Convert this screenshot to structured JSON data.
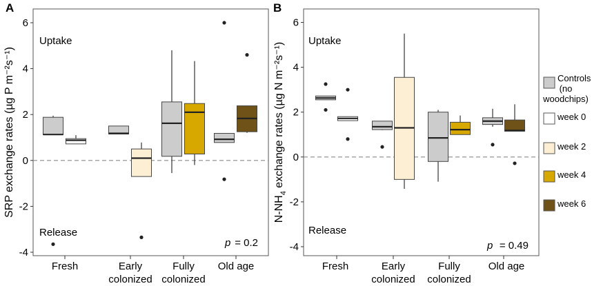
{
  "chart_data": [
    {
      "panel": "A",
      "type": "box",
      "ylabel": "SRP exchange rates (µg P m⁻²s⁻¹)",
      "ylim": [
        -4.15,
        6.6
      ],
      "yticks": [
        "6",
        "4",
        "2",
        "0",
        "-2",
        "-4"
      ],
      "categories": [
        "Fresh",
        "Early colonized",
        "Fully colonized",
        "Old age"
      ],
      "annotations": {
        "uptake": "Uptake",
        "release": "Release",
        "p_label": "p",
        "p_value": "= 0.2"
      },
      "boxes": [
        {
          "cat": 0,
          "series": "controls",
          "min": 1.12,
          "q1": 1.12,
          "median": 1.13,
          "q3": 1.88,
          "max": 1.95,
          "outliers": [
            -3.65
          ]
        },
        {
          "cat": 0,
          "series": "week0",
          "min": 0.72,
          "q1": 0.72,
          "median": 0.88,
          "q3": 0.95,
          "max": 1.1,
          "outliers": []
        },
        {
          "cat": 1,
          "series": "controls",
          "min": 1.15,
          "q1": 1.15,
          "median": 1.18,
          "q3": 1.5,
          "max": 1.5,
          "outliers": []
        },
        {
          "cat": 1,
          "series": "week2",
          "min": -0.7,
          "q1": -0.7,
          "median": 0.1,
          "q3": 0.5,
          "max": 0.78,
          "outliers": [
            -3.35
          ]
        },
        {
          "cat": 2,
          "series": "controls",
          "min": -0.55,
          "q1": 0.18,
          "median": 1.62,
          "q3": 2.55,
          "max": 4.8,
          "outliers": []
        },
        {
          "cat": 2,
          "series": "week4",
          "min": -0.2,
          "q1": 0.28,
          "median": 2.1,
          "q3": 2.48,
          "max": 4.33,
          "outliers": []
        },
        {
          "cat": 3,
          "series": "controls",
          "min": 0.78,
          "q1": 0.78,
          "median": 0.92,
          "q3": 1.18,
          "max": 1.18,
          "outliers": [
            6.0,
            -0.82
          ]
        },
        {
          "cat": 3,
          "series": "week6",
          "min": 1.2,
          "q1": 1.25,
          "median": 1.83,
          "q3": 2.38,
          "max": 2.38,
          "outliers": [
            4.6
          ]
        }
      ]
    },
    {
      "panel": "B",
      "type": "box",
      "ylabel_main": "N-NH",
      "ylabel_sub": "4",
      "ylabel_rest": " exchange rates (µg N m⁻²s⁻¹)",
      "ylim": [
        -4.4,
        6.6
      ],
      "yticks": [
        "6",
        "4",
        "2",
        "0",
        "-2",
        "-4"
      ],
      "categories": [
        "Fresh",
        "Early colonized",
        "Fully colonized",
        "Old age"
      ],
      "annotations": {
        "uptake": "Uptake",
        "release": "Release",
        "p_label": "p",
        "p_value": "= 0.49"
      },
      "boxes": [
        {
          "cat": 0,
          "series": "controls",
          "min": 2.55,
          "q1": 2.55,
          "median": 2.63,
          "q3": 2.72,
          "max": 2.72,
          "outliers": [
            3.25,
            2.1
          ]
        },
        {
          "cat": 0,
          "series": "week0",
          "min": 1.62,
          "q1": 1.62,
          "median": 1.72,
          "q3": 1.8,
          "max": 1.8,
          "outliers": [
            3.0,
            0.8
          ]
        },
        {
          "cat": 1,
          "series": "controls",
          "min": 1.2,
          "q1": 1.22,
          "median": 1.35,
          "q3": 1.6,
          "max": 1.6,
          "outliers": [
            0.45
          ]
        },
        {
          "cat": 1,
          "series": "week2",
          "min": -1.42,
          "q1": -1.0,
          "median": 1.3,
          "q3": 3.55,
          "max": 5.5,
          "outliers": []
        },
        {
          "cat": 2,
          "series": "controls",
          "min": -1.1,
          "q1": -0.2,
          "median": 0.85,
          "q3": 2.0,
          "max": 2.1,
          "outliers": []
        },
        {
          "cat": 2,
          "series": "week4",
          "min": 1.0,
          "q1": 1.0,
          "median": 1.22,
          "q3": 1.55,
          "max": 1.85,
          "outliers": []
        },
        {
          "cat": 3,
          "series": "controls",
          "min": 1.35,
          "q1": 1.45,
          "median": 1.6,
          "q3": 1.75,
          "max": 2.15,
          "outliers": [
            0.55
          ]
        },
        {
          "cat": 3,
          "series": "week6",
          "min": 1.15,
          "q1": 1.15,
          "median": 1.18,
          "q3": 1.65,
          "max": 2.35,
          "outliers": [
            -0.28
          ]
        }
      ]
    }
  ],
  "legend": [
    {
      "key": "controls",
      "label_lines": [
        "Controls",
        "(no",
        "woodchips)"
      ],
      "color": "#cccccc"
    },
    {
      "key": "week0",
      "label_lines": [
        "week 0"
      ],
      "color": "#ffffff"
    },
    {
      "key": "week2",
      "label_lines": [
        "week 2"
      ],
      "color": "#fdefd3"
    },
    {
      "key": "week4",
      "label_lines": [
        "week 4"
      ],
      "color": "#d6a800"
    },
    {
      "key": "week6",
      "label_lines": [
        "week 6"
      ],
      "color": "#6e5218"
    }
  ]
}
